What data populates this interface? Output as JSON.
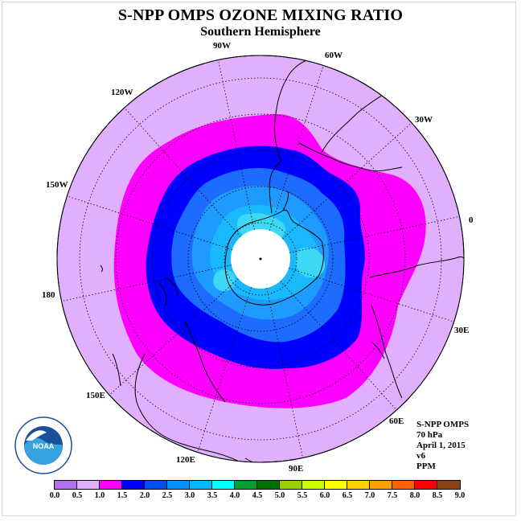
{
  "title": "S-NPP OMPS OZONE MIXING RATIO",
  "subtitle": "Southern Hemisphere",
  "longitude_labels": [
    "90W",
    "60W",
    "30W",
    "0",
    "30E",
    "60E",
    "90E",
    "120E",
    "150E",
    "180",
    "150W",
    "120W"
  ],
  "info": {
    "line1": "S-NPP OMPS",
    "line2": "70 hPa",
    "line3": "April 1, 2015",
    "line4": "v6",
    "line5": "PPM"
  },
  "logo_text": "NOAA",
  "colorbar": {
    "ticks": [
      "0.0",
      "0.5",
      "1.0",
      "1.5",
      "2.0",
      "2.5",
      "3.0",
      "3.5",
      "4.0",
      "4.5",
      "5.0",
      "5.5",
      "6.0",
      "6.5",
      "7.0",
      "7.5",
      "8.0",
      "8.5",
      "9.0"
    ],
    "colors": [
      "#b070f0",
      "#e0b0ff",
      "#ff00ff",
      "#0000ff",
      "#0050f0",
      "#0090ff",
      "#00b8ff",
      "#00ffff",
      "#00a030",
      "#007000",
      "#98d000",
      "#c8ff00",
      "#ffff00",
      "#ffd000",
      "#ffa000",
      "#ff6000",
      "#ff0000",
      "#8b4513"
    ]
  },
  "map_colors": {
    "background": "#e0b0ff",
    "ring_1_1_5": "#ff00ff",
    "ring_1_5_2": "#0000ff",
    "ring_2_2_5": "#1e6bff",
    "ring_2_5_3": "#1d9bff",
    "ring_3_3_5": "#1ab8ff",
    "ring_3_5_4": "#3cd8f6",
    "pole_missing": "#ffffff"
  }
}
